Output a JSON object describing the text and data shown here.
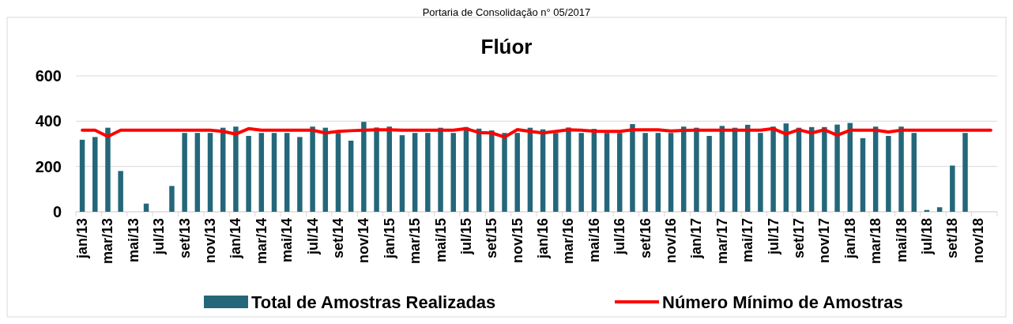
{
  "chart_data": {
    "type": "bar",
    "title": "Flúor",
    "annotations": [
      "Portaria de Consolidação n° 05/2017"
    ],
    "categories": [
      "jan/13",
      null,
      "mar/13",
      null,
      "mai/13",
      null,
      "jul/13",
      null,
      "set/13",
      null,
      "nov/13",
      null,
      "jan/14",
      null,
      "mar/14",
      null,
      "mai/14",
      null,
      "jul/14",
      null,
      "set/14",
      null,
      "nov/14",
      null,
      "jan/15",
      null,
      "mar/15",
      null,
      "mai/15",
      null,
      "jul/15",
      null,
      "set/15",
      null,
      "nov/15",
      null,
      "jan/16",
      null,
      "mar/16",
      null,
      "mai/16",
      null,
      "jul/16",
      null,
      "set/16",
      null,
      "nov/16",
      null,
      "jan/17",
      null,
      "mar/17",
      null,
      "mai/17",
      null,
      "jul/17",
      null,
      "set/17",
      null,
      "nov/17",
      null,
      "jan/18",
      null,
      "mar/18",
      null,
      "mai/18",
      null,
      "jul/18",
      null,
      "set/18",
      null,
      "nov/18",
      null
    ],
    "series": [
      {
        "name": "Total de Amostras Realizadas",
        "color": "#24677a",
        "values": [
          318,
          330,
          371,
          180,
          0,
          36,
          0,
          114,
          348,
          348,
          348,
          371,
          376,
          335,
          348,
          348,
          348,
          330,
          376,
          371,
          348,
          314,
          397,
          372,
          376,
          338,
          348,
          348,
          371,
          348,
          374,
          367,
          359,
          348,
          348,
          371,
          364,
          348,
          372,
          348,
          366,
          348,
          348,
          387,
          348,
          348,
          348,
          376,
          371,
          335,
          379,
          371,
          384,
          348,
          376,
          390,
          371,
          374,
          374,
          385,
          392,
          325,
          376,
          335,
          376,
          348,
          8,
          20,
          204,
          348,
          null,
          null
        ]
      },
      {
        "name": "Número Mínimo de Amostras",
        "type": "line",
        "color": "#ff0000",
        "values": [
          360,
          360,
          332,
          360,
          360,
          360,
          360,
          360,
          360,
          360,
          360,
          355,
          343,
          367,
          360,
          360,
          360,
          360,
          360,
          348,
          355,
          358,
          360,
          362,
          362,
          360,
          360,
          360,
          360,
          360,
          367,
          350,
          348,
          330,
          363,
          355,
          348,
          355,
          362,
          360,
          356,
          355,
          355,
          362,
          362,
          362,
          357,
          359,
          360,
          360,
          360,
          360,
          360,
          360,
          367,
          343,
          362,
          348,
          362,
          338,
          360,
          360,
          360,
          352,
          360,
          360,
          360,
          360,
          360,
          360,
          360,
          360
        ]
      }
    ],
    "ylim": [
      0,
      600
    ],
    "yticks": [
      0,
      200,
      400,
      600
    ],
    "grid": "y",
    "legend": "bottom"
  }
}
